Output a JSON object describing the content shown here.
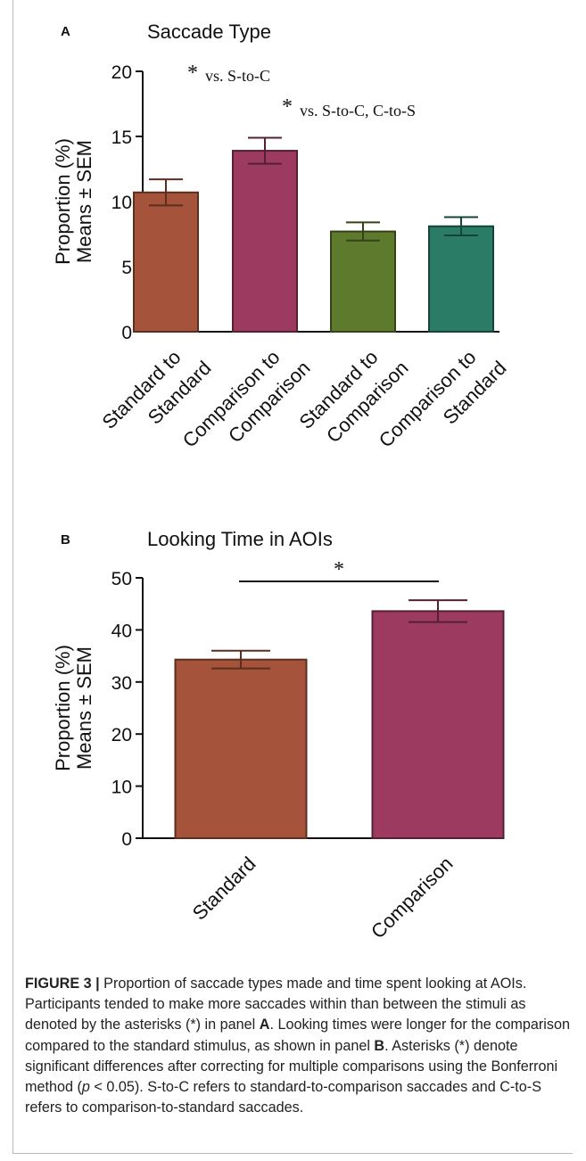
{
  "chart_data": [
    {
      "panel": "A",
      "type": "bar",
      "title": "Saccade Type",
      "ylabel_line1": "Proportion (%)",
      "ylabel_line2": "Means ± SEM",
      "ylim": [
        0,
        20
      ],
      "yticks": [
        "0",
        "5",
        "10",
        "15",
        "20"
      ],
      "categories": [
        [
          "Standard to",
          "Standard"
        ],
        [
          "Comparison to",
          "Comparison"
        ],
        [
          "Standard to",
          "Comparison"
        ],
        [
          "Comparison to",
          "Standard"
        ]
      ],
      "values": [
        10.7,
        13.9,
        7.7,
        8.1
      ],
      "sem": [
        1.0,
        1.0,
        0.7,
        0.7
      ],
      "colors": [
        "#a5533b",
        "#9c3a5f",
        "#5e7a2c",
        "#2a7c66"
      ],
      "annotations": [
        {
          "symbol": "*",
          "text": "vs. S-to-C"
        },
        {
          "symbol": "*",
          "text": "vs. S-to-C, C-to-S"
        }
      ]
    },
    {
      "panel": "B",
      "type": "bar",
      "title": "Looking Time in AOIs",
      "ylabel_line1": "Proportion (%)",
      "ylabel_line2": "Means ± SEM",
      "ylim": [
        0,
        50
      ],
      "yticks": [
        "0",
        "10",
        "20",
        "30",
        "40",
        "50"
      ],
      "categories": [
        "Standard",
        "Comparison"
      ],
      "values": [
        34.3,
        43.6
      ],
      "sem": [
        1.7,
        2.1
      ],
      "colors": [
        "#a5533b",
        "#9c3a5f"
      ],
      "significance": "*"
    }
  ],
  "caption": {
    "label": "FIGURE 3 |",
    "text_1": " Proportion of saccade types made and time spent looking at AOIs. Participants tended to make more saccades within than between the stimuli as denoted by the asterisks (*) in panel ",
    "panel_a": "A",
    "text_2": ". Looking times were longer for the comparison compared to the standard stimulus, as shown in panel ",
    "panel_b": "B",
    "text_3": ". Asterisks (*) denote significant differences after correcting for multiple comparisons using the Bonferroni method (",
    "p": "p",
    "text_4": " < 0.05). S-to-C refers to standard-to-comparison saccades and C-to-S refers to comparison-to-standard saccades."
  }
}
